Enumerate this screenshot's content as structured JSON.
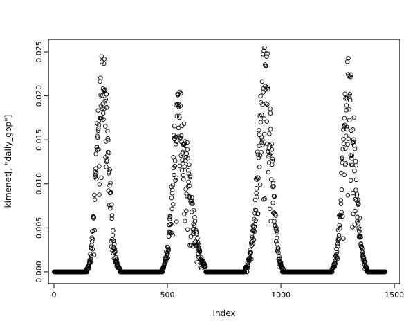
{
  "figure": {
    "background": "#ffffff"
  },
  "chart_data": {
    "type": "scatter",
    "title": "",
    "xlabel": "Index",
    "ylabel": "kimenet[, \"daily_gpp\"]",
    "point_color": "#000000",
    "marker": "open-circle",
    "grid": false,
    "box": true,
    "legend": "none",
    "n_points": 1460,
    "seed": 7,
    "xlim": [
      -24.4,
      1524
    ],
    "ylim": [
      -0.00134,
      0.02642
    ],
    "xticks": [
      {
        "value": 0,
        "label": "0"
      },
      {
        "value": 500,
        "label": "500"
      },
      {
        "value": 1000,
        "label": "1000"
      },
      {
        "value": 1500,
        "label": "1500"
      }
    ],
    "yticks": [
      {
        "value": 0.0,
        "label": "0.000"
      },
      {
        "value": 0.005,
        "label": "0.005"
      },
      {
        "value": 0.01,
        "label": "0.010"
      },
      {
        "value": 0.015,
        "label": "0.015"
      },
      {
        "value": 0.02,
        "label": "0.020"
      },
      {
        "value": 0.025,
        "label": "0.025"
      }
    ],
    "baseline_value": 0,
    "peaks": [
      {
        "index": 212,
        "value": 0.0255
      },
      {
        "index": 548,
        "value": 0.0205
      },
      {
        "index": 932,
        "value": 0.0255
      },
      {
        "index": 1298,
        "value": 0.0245
      }
    ],
    "seasons": [
      {
        "start": 135,
        "end": 305,
        "center": 212,
        "peak": 0.0255,
        "width_left": 23,
        "width_right": 27
      },
      {
        "start": 472,
        "end": 668,
        "center": 548,
        "peak": 0.0205,
        "width_left": 25,
        "width_right": 46
      },
      {
        "start": 828,
        "end": 1015,
        "center": 932,
        "peak": 0.0255,
        "width_left": 31,
        "width_right": 27
      },
      {
        "start": 1222,
        "end": 1385,
        "center": 1298,
        "peak": 0.0245,
        "width_left": 25,
        "width_right": 29
      }
    ]
  }
}
